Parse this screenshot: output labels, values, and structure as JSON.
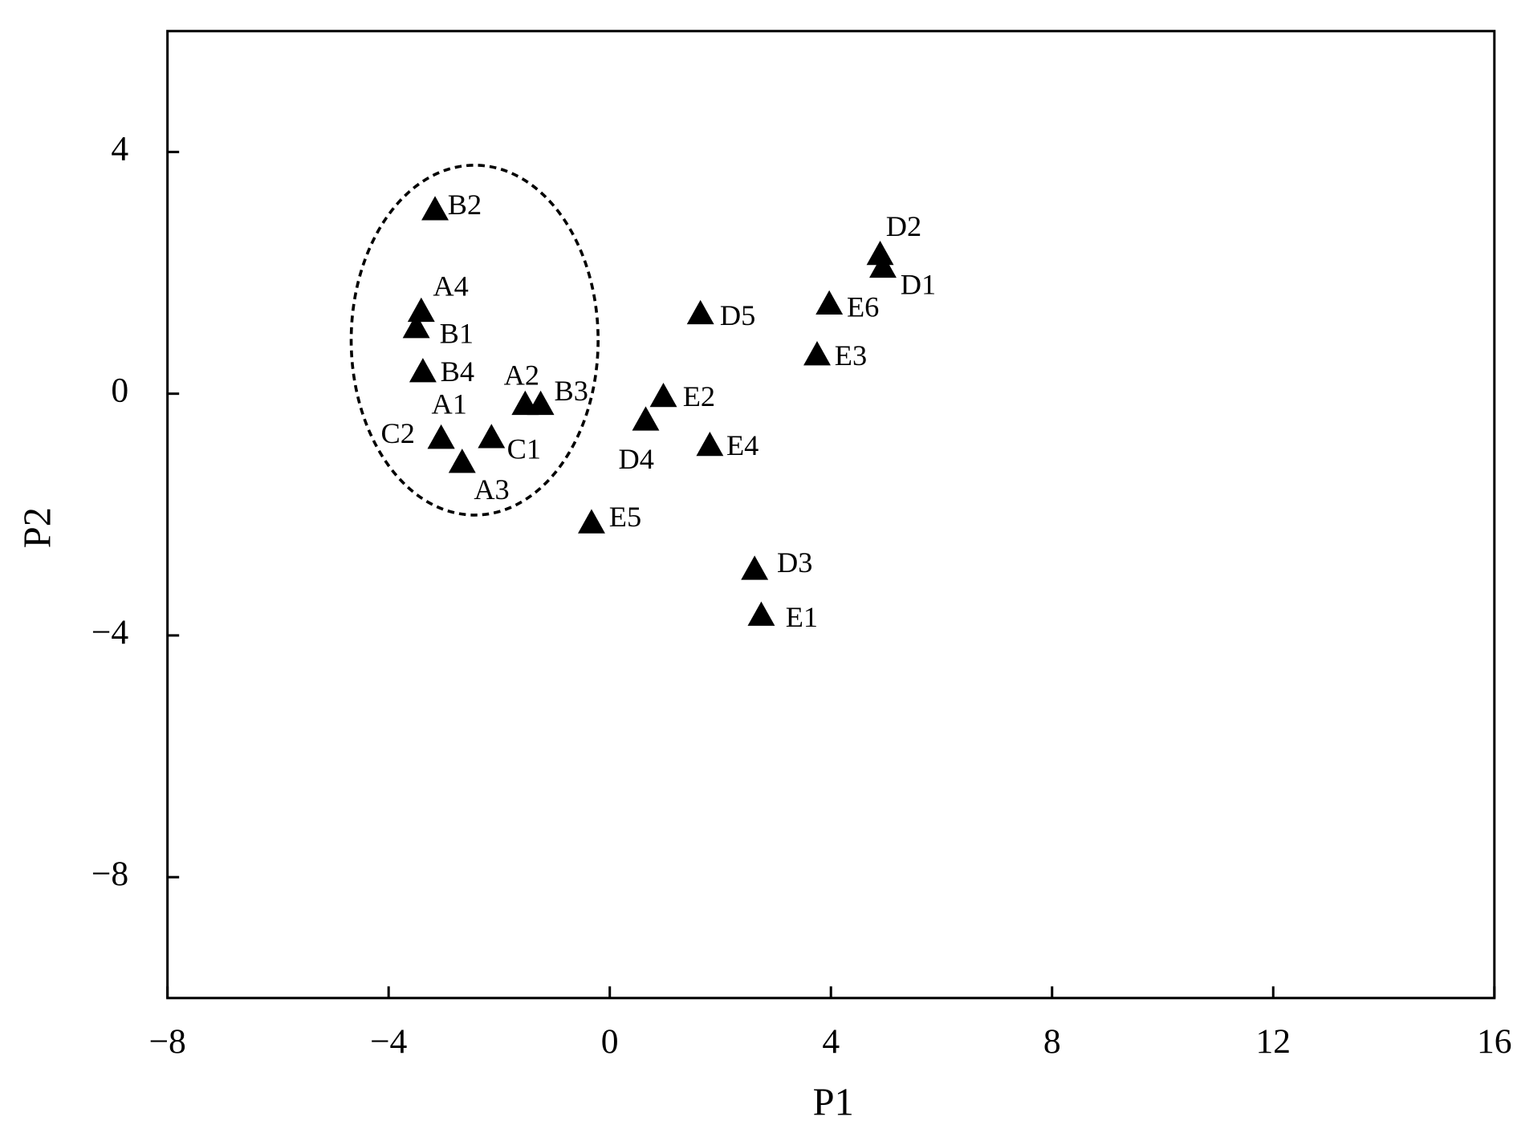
{
  "chart_data": {
    "type": "scatter",
    "xlabel": "P1",
    "ylabel": "P2",
    "labels": [
      "B2",
      "A4",
      "B1",
      "B4",
      "A2",
      "B3",
      "A1",
      "C2",
      "C1",
      "A3",
      "E5",
      "D4",
      "E2",
      "D5",
      "E4",
      "D3",
      "E1",
      "E3",
      "E6",
      "D2",
      "D1"
    ],
    "x": [
      -3.16,
      -3.41,
      -3.5,
      -3.38,
      -1.53,
      -1.25,
      -3.05,
      -3.05,
      -2.14,
      -2.67,
      -0.33,
      0.65,
      0.97,
      1.64,
      1.81,
      2.62,
      2.74,
      3.75,
      3.97,
      4.89,
      4.94
    ],
    "y": [
      3.03,
      1.35,
      1.08,
      0.35,
      -0.19,
      -0.19,
      -0.75,
      -0.75,
      -0.74,
      -1.15,
      -2.15,
      -0.45,
      -0.06,
      1.31,
      -0.87,
      -2.92,
      -3.68,
      0.63,
      1.47,
      2.29,
      2.08
    ],
    "color": "#000000",
    "marker": "triangle",
    "xlim": [
      -8,
      16
    ],
    "ylim": [
      -10,
      6
    ],
    "xticks": [
      {
        "value": -8,
        "label": "−8"
      },
      {
        "value": -4,
        "label": "−4"
      },
      0,
      4,
      8,
      12,
      16
    ],
    "yticks": [
      {
        "value": -8,
        "label": "−8"
      },
      {
        "value": -4,
        "label": "−4"
      },
      0,
      4
    ]
  }
}
